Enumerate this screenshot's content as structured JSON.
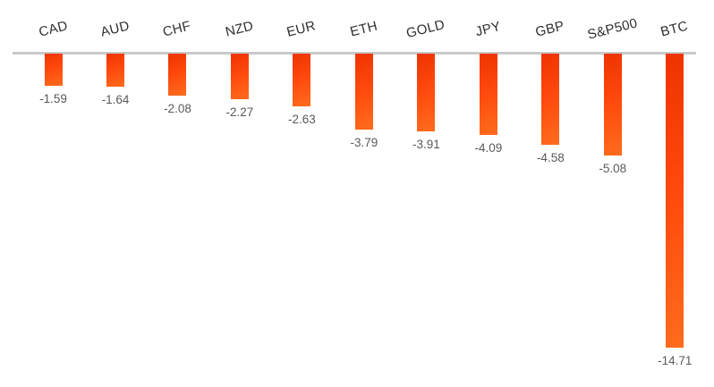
{
  "chart_data": {
    "type": "bar",
    "orientation": "vertical",
    "title": "",
    "xlabel": "",
    "ylabel": "",
    "grid": false,
    "legend": null,
    "ylim": [
      -16,
      0
    ],
    "baseline_value": 0,
    "categories": [
      "CAD",
      "AUD",
      "CHF",
      "NZD",
      "EUR",
      "ETH",
      "GOLD",
      "JPY",
      "GBP",
      "S&P500",
      "BTC"
    ],
    "values": [
      -1.59,
      -1.64,
      -2.08,
      -2.27,
      -2.63,
      -3.79,
      -3.91,
      -4.09,
      -4.58,
      -5.08,
      -14.71
    ],
    "data_labels": [
      "-1.59",
      "-1.64",
      "-2.08",
      "-2.27",
      "-2.63",
      "-3.79",
      "-3.91",
      "-4.09",
      "-4.58",
      "-5.08",
      "-14.71"
    ],
    "category_label_rotation_deg": -14,
    "colors": {
      "bar_gradient_start": "#ee3300",
      "bar_gradient_mid": "#ff480c",
      "bar_gradient_end": "#ff6c1d",
      "axis_line": "#c9c9c9",
      "category_label": "#2f2f2f",
      "value_label": "#595959",
      "background": "#ffffff"
    }
  }
}
